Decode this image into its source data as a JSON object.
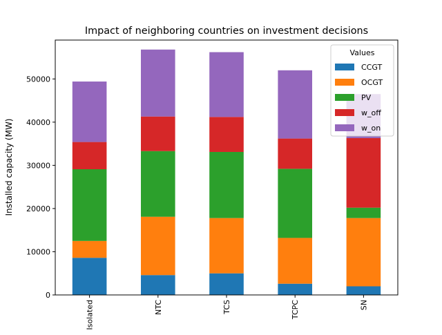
{
  "chart_data": {
    "type": "bar",
    "stacked": true,
    "title": "Impact of neighboring countries on investment decisions",
    "xlabel": "",
    "ylabel": "Installed capacity (MW)",
    "ylim": [
      0,
      59000
    ],
    "yticks": [
      0,
      10000,
      20000,
      30000,
      40000,
      50000
    ],
    "ytick_labels": [
      "0",
      "10000",
      "20000",
      "30000",
      "40000",
      "50000"
    ],
    "categories": [
      "Isolated",
      "NTC",
      "TCS",
      "TCPC",
      "SN"
    ],
    "grid": false,
    "legend": {
      "title": "Values",
      "placement": "top-right"
    },
    "series": [
      {
        "name": "CCGT",
        "color": "#1f77b4",
        "values": [
          8600,
          4600,
          5000,
          2600,
          2000
        ]
      },
      {
        "name": "OCGT",
        "color": "#ff7f0e",
        "values": [
          3900,
          13500,
          12800,
          10600,
          15800
        ]
      },
      {
        "name": "PV",
        "color": "#2ca02c",
        "values": [
          16600,
          15200,
          15300,
          16000,
          2400
        ]
      },
      {
        "name": "w_off",
        "color": "#d62728",
        "values": [
          6300,
          8000,
          8100,
          7000,
          16100
        ]
      },
      {
        "name": "w_on",
        "color": "#9467bd",
        "values": [
          14000,
          15500,
          15000,
          15800,
          10200
        ]
      }
    ]
  }
}
